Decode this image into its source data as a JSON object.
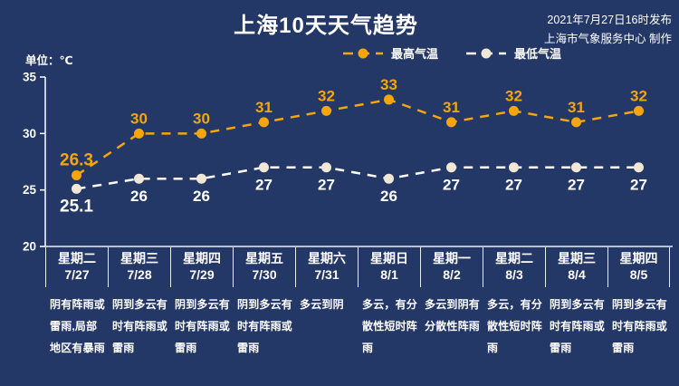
{
  "colors": {
    "background": "#243868",
    "axis": "#ffffff",
    "separator": "#e6edf5",
    "high_accent": "#f6a50a",
    "low_accent": "#ffffff"
  },
  "header": {
    "title": "上海10天天气趋势",
    "release_line1": "2021年7月27日16时发布",
    "release_line2": "上海市气象服务中心 制作",
    "unit_label": "单位：℃"
  },
  "legend": [
    {
      "label": "最高气温",
      "color": "#f6a50a",
      "marker_fill": "#f6a50a"
    },
    {
      "label": "最低气温",
      "color": "#ffffff",
      "marker_fill": "#f0e7d6"
    }
  ],
  "chart_data": {
    "type": "line",
    "title": "上海10天天气趋势",
    "x_categories": [
      "7/27",
      "7/28",
      "7/29",
      "7/30",
      "7/31",
      "8/1",
      "8/2",
      "8/3",
      "8/4",
      "8/5"
    ],
    "series": [
      {
        "name": "最高气温",
        "color": "#f6a50a",
        "marker_fill": "#f6a50a",
        "label_position": "above",
        "values": [
          26.3,
          30,
          30,
          31,
          32,
          33,
          31,
          32,
          31,
          32
        ]
      },
      {
        "name": "最低气温",
        "color": "#ffffff",
        "marker_fill": "#f0e7d6",
        "label_position": "below",
        "values": [
          25.1,
          26,
          26,
          27,
          27,
          26,
          27,
          27,
          27,
          27
        ]
      }
    ],
    "ylim": [
      20,
      35
    ],
    "yticks": [
      35,
      30,
      25,
      20
    ],
    "ylabel": "℃",
    "grid": false,
    "line_style": "dashed",
    "legend_position": "top"
  },
  "table": {
    "days": [
      {
        "weekday": "星期二",
        "date": "7/27",
        "weather": "阴有阵雨或雷雨,局部地区有暴雨"
      },
      {
        "weekday": "星期三",
        "date": "7/28",
        "weather": "阴到多云有时有阵雨或雷雨"
      },
      {
        "weekday": "星期四",
        "date": "7/29",
        "weather": "阴到多云有时有阵雨或雷雨"
      },
      {
        "weekday": "星期五",
        "date": "7/30",
        "weather": "阴到多云有时有阵雨或雷雨"
      },
      {
        "weekday": "星期六",
        "date": "7/31",
        "weather": "多云到阴"
      },
      {
        "weekday": "星期日",
        "date": "8/1",
        "weather": "多云，有分散性短时阵雨"
      },
      {
        "weekday": "星期一",
        "date": "8/2",
        "weather": "多云到阴有分散性阵雨"
      },
      {
        "weekday": "星期二",
        "date": "8/3",
        "weather": "多云，有分散性短时阵雨"
      },
      {
        "weekday": "星期三",
        "date": "8/4",
        "weather": "阴到多云有时有阵雨或雷雨"
      },
      {
        "weekday": "星期四",
        "date": "8/5",
        "weather": "阴到多云有时有阵雨或雷雨"
      }
    ]
  }
}
